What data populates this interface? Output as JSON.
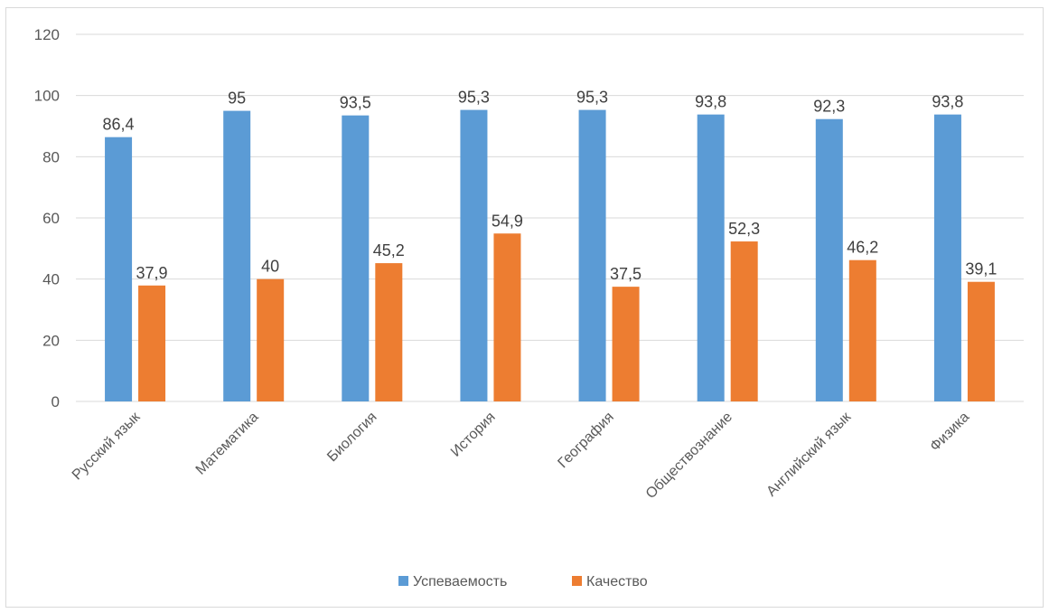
{
  "chart_data": {
    "type": "bar",
    "categories": [
      "Русский язык",
      "Математика",
      "Биология",
      "История",
      "География",
      "Обществознание",
      "Английский язык",
      "Физика"
    ],
    "series": [
      {
        "name": "Успеваемость",
        "color": "#5b9bd5",
        "values": [
          86.4,
          95,
          93.5,
          95.3,
          95.3,
          93.8,
          92.3,
          93.8
        ],
        "labels": [
          "86,4",
          "95",
          "93,5",
          "95,3",
          "95,3",
          "93,8",
          "92,3",
          "93,8"
        ]
      },
      {
        "name": "Качество",
        "color": "#ed7d31",
        "values": [
          37.9,
          40,
          45.2,
          54.9,
          37.5,
          52.3,
          46.2,
          39.1
        ],
        "labels": [
          "37,9",
          "40",
          "45,2",
          "54,9",
          "37,5",
          "52,3",
          "46,2",
          "39,1"
        ]
      }
    ],
    "y_ticks": [
      0,
      20,
      40,
      60,
      80,
      100,
      120
    ],
    "ylim": [
      0,
      120
    ],
    "grid": true,
    "legend_position": "bottom",
    "title": "",
    "xlabel": "",
    "ylabel": ""
  }
}
